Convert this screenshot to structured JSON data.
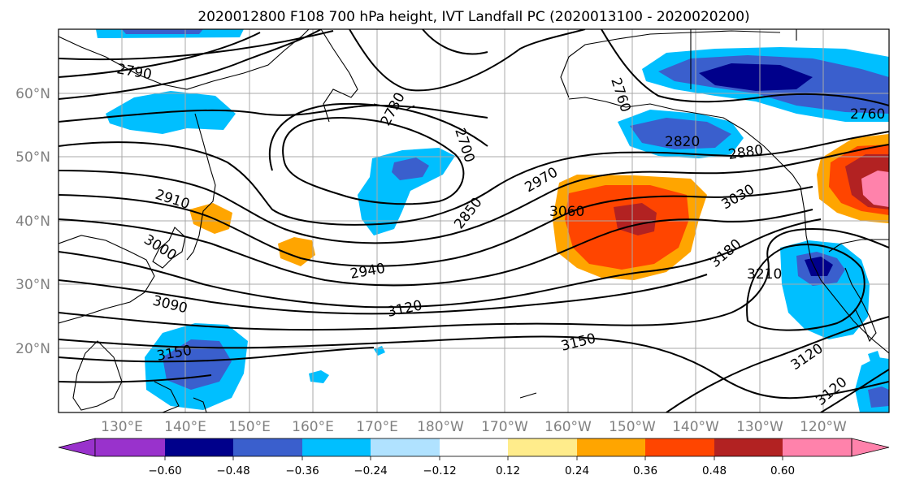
{
  "title": "2020012800 F108 700 hPa height, IVT Landfall PC (2020013100 - 2020020200)",
  "lat_labels": [
    "60°N",
    "50°N",
    "40°N",
    "30°N",
    "20°N"
  ],
  "lon_labels": [
    "130°E",
    "140°E",
    "150°E",
    "160°E",
    "170°E",
    "180°W",
    "170°W",
    "160°W",
    "150°W",
    "140°W",
    "130°W",
    "120°W"
  ],
  "contour_labels": [
    "2790",
    "2730",
    "2700",
    "2760",
    "2820",
    "2880",
    "2760",
    "2910",
    "3000",
    "2850",
    "2970",
    "3060",
    "3030",
    "3180",
    "3210",
    "2940",
    "3120",
    "3090",
    "3150",
    "3150",
    "3120",
    "3120"
  ],
  "colorbar": {
    "colors": [
      "#9932cc",
      "#00008b",
      "#3a5fcd",
      "#00bfff",
      "#b0e2ff",
      "#ffffff",
      "#ffec8b",
      "#ffa500",
      "#ff4500",
      "#b22222",
      "#ff82ab"
    ],
    "tick_labels": [
      "−0.60",
      "−0.48",
      "−0.36",
      "−0.24",
      "−0.12",
      "0.12",
      "0.24",
      "0.36",
      "0.48",
      "0.60"
    ]
  }
}
